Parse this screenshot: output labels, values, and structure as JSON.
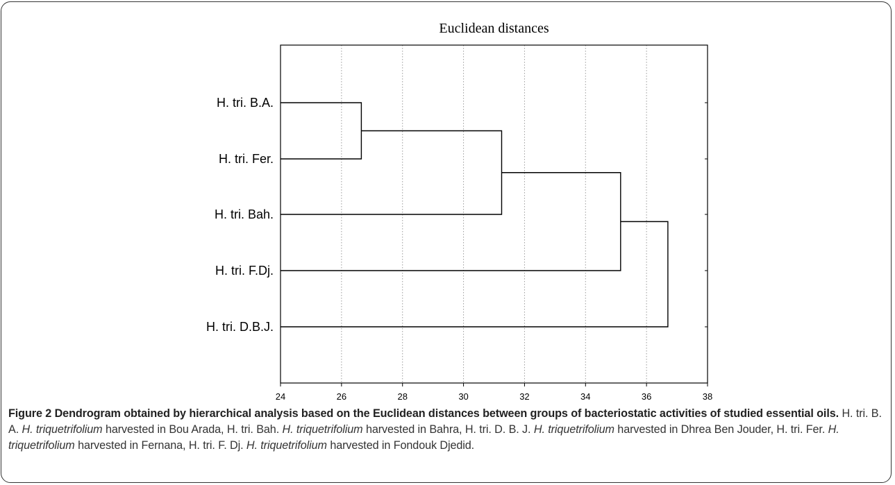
{
  "chart_data": {
    "type": "dendrogram",
    "title": "Euclidean distances",
    "xlabel": "",
    "ylabel": "",
    "xlim": [
      24,
      38
    ],
    "x_ticks": [
      24,
      26,
      28,
      30,
      32,
      34,
      36,
      38
    ],
    "grid": "vertical dotted",
    "leaves": [
      "H. tri. B.A.",
      "H. tri. Fer.",
      "H. tri. Bah.",
      "H. tri. F.Dj.",
      "H. tri. D.B.J."
    ],
    "merges": [
      {
        "left": "H. tri. B.A.",
        "right": "H. tri. Fer.",
        "distance": 26.65
      },
      {
        "left": "cluster(B.A., Fer.)",
        "right": "H. tri. Bah.",
        "distance": 31.25
      },
      {
        "left": "cluster(B.A., Fer., Bah.)",
        "right": "H. tri. F.Dj.",
        "distance": 35.15
      },
      {
        "left": "cluster(B.A., Fer., Bah., F.Dj.)",
        "right": "H. tri. D.B.J.",
        "distance": 36.7
      }
    ]
  },
  "caption": {
    "label": "Figure 2",
    "title": "Dendrogram obtained by hierarchical analysis based on the Euclidean distances between groups of bacteriostatic activities of studied essential oils.",
    "segments": [
      {
        "text": "H. tri. B. A. ",
        "italic": false
      },
      {
        "text": "H. triquetrifolium",
        "italic": true
      },
      {
        "text": " harvested in Bou Arada, H. tri. Bah. ",
        "italic": false
      },
      {
        "text": "H. triquetrifolium",
        "italic": true
      },
      {
        "text": " harvested in Bahra, H. tri. D. B. J. ",
        "italic": false
      },
      {
        "text": "H. triquetrifolium",
        "italic": true
      },
      {
        "text": " harvested in Dhrea Ben Jouder, H. tri. Fer. ",
        "italic": false
      },
      {
        "text": "H. triquetrifolium",
        "italic": true
      },
      {
        "text": " harvested in Fernana, H. tri. F. Dj. ",
        "italic": false
      },
      {
        "text": "H. triquetrifolium",
        "italic": true
      },
      {
        "text": " harvested in Fondouk Djedid.",
        "italic": false
      }
    ]
  }
}
